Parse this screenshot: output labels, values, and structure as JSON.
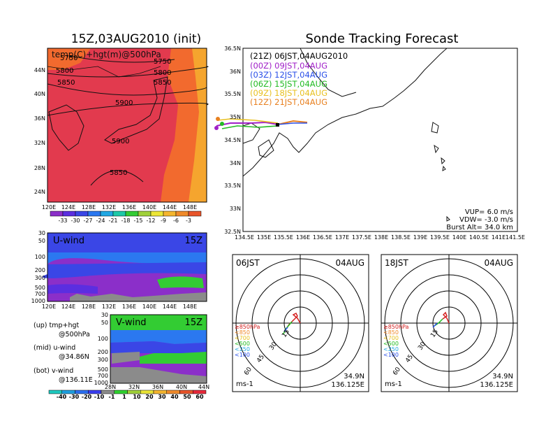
{
  "main_map": {
    "title": "15Z,03AUG2010 (init)",
    "label": "temp(C)+hgt(m)@500hPa",
    "lat_ticks": [
      "44N",
      "40N",
      "36N",
      "32N",
      "28N",
      "24N"
    ],
    "lon_ticks": [
      "120E",
      "124E",
      "128E",
      "132E",
      "136E",
      "140E",
      "144E",
      "148E"
    ],
    "contour_labels": [
      "5750",
      "5750",
      "5800",
      "5800",
      "5850",
      "5850",
      "5900",
      "5900",
      "5850"
    ],
    "colorbar_labels": [
      "-33",
      "-30",
      "-27",
      "-24",
      "-21",
      "-18",
      "-15",
      "-12",
      "-9",
      "-6",
      "-3"
    ],
    "colorbar_colors": [
      "#8b2fc9",
      "#5b2ee0",
      "#3a46e6",
      "#2b78f0",
      "#21a8e3",
      "#1ec9a8",
      "#33cc33",
      "#a0d13a",
      "#ece636",
      "#f5b62e",
      "#f08a2a",
      "#e8542a"
    ]
  },
  "tracking": {
    "title": "Sonde Tracking Forecast",
    "legend": [
      {
        "text": "(21Z) 06JST,04AUG2010",
        "color": "#000000"
      },
      {
        "text": "(00Z) 09JST,04AUG",
        "color": "#a020c8"
      },
      {
        "text": "(03Z) 12JST,04AUG",
        "color": "#2a4fe8"
      },
      {
        "text": "(06Z) 15JST,04AUG",
        "color": "#22bb22"
      },
      {
        "text": "(09Z) 18JST,04AUG",
        "color": "#e8c020"
      },
      {
        "text": "(12Z) 21JST,04AUG",
        "color": "#e88020"
      }
    ],
    "lat_ticks": [
      "36.5N",
      "36N",
      "35.5N",
      "35N",
      "34.5N",
      "34N",
      "33.5N",
      "33N",
      "32.5N"
    ],
    "lon_ticks": [
      "134.5E",
      "135E",
      "135.5E",
      "136E",
      "136.5E",
      "137E",
      "137.5E",
      "138E",
      "138.5E",
      "139E",
      "139.5E",
      "140E",
      "140.5E",
      "141E",
      "141.5E"
    ],
    "info": [
      "VUP= 6.0 m/s",
      "VDW= -3.0 m/s",
      "Burst Alt= 34.0 km"
    ]
  },
  "u_wind": {
    "label": "U-wind",
    "time": "15Z",
    "y_ticks": [
      "30",
      "50",
      "100",
      "200",
      "300",
      "500",
      "700",
      "1000"
    ],
    "x_ticks": [
      "120E",
      "124E",
      "128E",
      "132E",
      "136E",
      "140E",
      "144E",
      "148E"
    ]
  },
  "v_wind": {
    "label": "V-wind",
    "time": "15Z",
    "y_ticks": [
      "30",
      "50",
      "100",
      "200",
      "300",
      "500",
      "700",
      "1000"
    ],
    "x_ticks": [
      "28N",
      "32N",
      "36N",
      "40N",
      "44N"
    ]
  },
  "notes": [
    {
      "a": "(up) tmp+hgt",
      "b": "@500hPa"
    },
    {
      "a": "(mid) u-wind",
      "b": "@34.86N"
    },
    {
      "a": "(bot) v-wind",
      "b": "@136.11E"
    }
  ],
  "wind_colorbar": {
    "labels": [
      "-40",
      "-30",
      "-20",
      "-10",
      "-1",
      "1",
      "10",
      "20",
      "30",
      "40",
      "50",
      "60"
    ],
    "colors": [
      "#1ec9c0",
      "#1e9fe0",
      "#2b6ef0",
      "#3a3ef0",
      "#8b8b8b",
      "#2fd12f",
      "#a0d13a",
      "#ece636",
      "#f5b62e",
      "#f08a2a",
      "#e8542a",
      "#e8283a"
    ]
  },
  "polar_left": {
    "time": "06JST",
    "date": "04AUG",
    "ring_labels": [
      "15",
      "30",
      "45",
      "60"
    ],
    "legend": [
      {
        "text": "≥850hPa",
        "color": "#d42020"
      },
      {
        "text": "<850",
        "color": "#f08a2a"
      },
      {
        "text": "<700",
        "color": "#e8c020"
      },
      {
        "text": "<500",
        "color": "#22bb22"
      },
      {
        "text": "<250",
        "color": "#21a8e3"
      },
      {
        "text": "<100",
        "color": "#2a4fe8"
      }
    ],
    "unit": "ms-1",
    "lat": "34.9N",
    "lon": "136.125E"
  },
  "polar_right": {
    "time": "18JST",
    "date": "04AUG",
    "ring_labels": [
      "15",
      "30",
      "45",
      "60"
    ],
    "legend": [
      {
        "text": "≥850hPa",
        "color": "#d42020"
      },
      {
        "text": "<850",
        "color": "#f08a2a"
      },
      {
        "text": "<700",
        "color": "#e8c020"
      },
      {
        "text": "<500",
        "color": "#22bb22"
      },
      {
        "text": "<250",
        "color": "#21a8e3"
      },
      {
        "text": "<100",
        "color": "#2a4fe8"
      }
    ],
    "unit": "ms-1",
    "lat": "34.9N",
    "lon": "136.125E"
  }
}
